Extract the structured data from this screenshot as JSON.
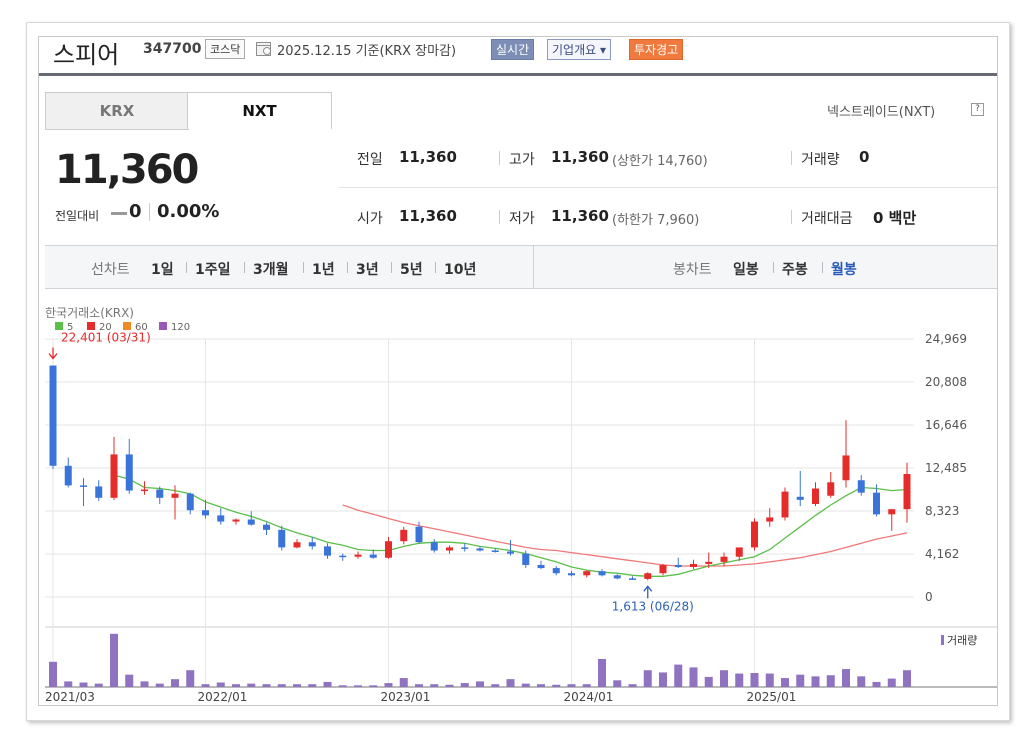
{
  "header": {
    "stock_name": "스피어",
    "stock_code": "347700",
    "market": "코스닥",
    "date_text": "2025.12.15 기준(KRX 장마감)",
    "realtime_label": "실시간",
    "company_label": "기업개요 ▾",
    "warning_label": "투자경고"
  },
  "tabs": [
    {
      "label": "KRX"
    },
    {
      "label": "NXT"
    }
  ],
  "nxt_label": "넥스트레이드(NXT)",
  "help_glyph": "?",
  "price": {
    "current": "11,360",
    "change_label": "전일대비",
    "change_value": "0",
    "change_pct": "0.00%"
  },
  "stats": {
    "prev_label": "전일",
    "prev_value": "11,360",
    "high_label": "고가",
    "high_value": "11,360",
    "upper_limit": "(상한가 14,760)",
    "volume_label": "거래량",
    "volume_value": "0",
    "open_label": "시가",
    "open_value": "11,360",
    "low_label": "저가",
    "low_value": "11,360",
    "lower_limit": "(하한가 7,960)",
    "amount_label": "거래대금",
    "amount_value": "0 백만"
  },
  "period": {
    "line_label": "선차트",
    "line_items": [
      "1일",
      "1주일",
      "3개월",
      "1년",
      "3년",
      "5년",
      "10년"
    ],
    "candle_label": "봉차트",
    "candle_items": [
      "일봉",
      "주봉",
      "월봉"
    ],
    "selected": "월봉"
  },
  "colors": {
    "up": "#e62b2b",
    "down": "#3a74d8",
    "ma5": "#5cbf4a",
    "ma20": "#f07878",
    "volume": "#8f72c0",
    "grid": "#e6e6e6"
  },
  "chart_data": {
    "type": "candlestick",
    "source_label": "한국거래소(KRX)",
    "legend": [
      "5",
      "20",
      "60",
      "120"
    ],
    "legend_colors": [
      "#5cbf4a",
      "#e62b2b",
      "#f08a24",
      "#9b59b6"
    ],
    "y_ticks": [
      "24,969",
      "20,808",
      "16,646",
      "12,485",
      "8,323",
      "4,162",
      "0"
    ],
    "ylim": [
      0,
      24969
    ],
    "x_ticks": [
      {
        "label": "2021/03",
        "index": 0
      },
      {
        "label": "2022/01",
        "index": 10
      },
      {
        "label": "2023/01",
        "index": 22
      },
      {
        "label": "2024/01",
        "index": 34
      },
      {
        "label": "2025/01",
        "index": 46
      }
    ],
    "max_annotation": {
      "label": "22,401 (03/31)",
      "index": 0,
      "value": 22401
    },
    "min_annotation": {
      "label": "1,613 (06/28)",
      "index": 39,
      "value": 1613
    },
    "volume_label": "거래량",
    "candles": [
      {
        "o": 22401,
        "h": 22401,
        "l": 12400,
        "c": 12700
      },
      {
        "o": 12700,
        "h": 13500,
        "l": 10600,
        "c": 10800
      },
      {
        "o": 10800,
        "h": 11500,
        "l": 8800,
        "c": 10700
      },
      {
        "o": 10700,
        "h": 11300,
        "l": 9300,
        "c": 9600
      },
      {
        "o": 9600,
        "h": 15500,
        "l": 9400,
        "c": 13800
      },
      {
        "o": 13800,
        "h": 15300,
        "l": 10000,
        "c": 10300
      },
      {
        "o": 10300,
        "h": 11200,
        "l": 9900,
        "c": 10400
      },
      {
        "o": 10400,
        "h": 10700,
        "l": 9000,
        "c": 9600
      },
      {
        "o": 9600,
        "h": 10800,
        "l": 7500,
        "c": 10000
      },
      {
        "o": 10000,
        "h": 10100,
        "l": 8000,
        "c": 8400
      },
      {
        "o": 8400,
        "h": 9400,
        "l": 7600,
        "c": 7900
      },
      {
        "o": 7900,
        "h": 8600,
        "l": 7000,
        "c": 7300
      },
      {
        "o": 7300,
        "h": 7600,
        "l": 7000,
        "c": 7500
      },
      {
        "o": 7500,
        "h": 8300,
        "l": 6900,
        "c": 7000
      },
      {
        "o": 7000,
        "h": 7200,
        "l": 6000,
        "c": 6500
      },
      {
        "o": 6500,
        "h": 6900,
        "l": 4500,
        "c": 4800
      },
      {
        "o": 4800,
        "h": 5600,
        "l": 4700,
        "c": 5300
      },
      {
        "o": 5300,
        "h": 5800,
        "l": 4600,
        "c": 4900
      },
      {
        "o": 4900,
        "h": 5200,
        "l": 3700,
        "c": 4000
      },
      {
        "o": 4000,
        "h": 4200,
        "l": 3500,
        "c": 3900
      },
      {
        "o": 3900,
        "h": 4400,
        "l": 3700,
        "c": 4100
      },
      {
        "o": 4100,
        "h": 4600,
        "l": 3700,
        "c": 3800
      },
      {
        "o": 3800,
        "h": 5800,
        "l": 3700,
        "c": 5400
      },
      {
        "o": 5400,
        "h": 6800,
        "l": 5100,
        "c": 6500
      },
      {
        "o": 6800,
        "h": 7300,
        "l": 5200,
        "c": 5300
      },
      {
        "o": 5300,
        "h": 5600,
        "l": 4300,
        "c": 4500
      },
      {
        "o": 4500,
        "h": 5000,
        "l": 4200,
        "c": 4800
      },
      {
        "o": 4800,
        "h": 5200,
        "l": 4400,
        "c": 4700
      },
      {
        "o": 4700,
        "h": 4900,
        "l": 4400,
        "c": 4500
      },
      {
        "o": 4500,
        "h": 4700,
        "l": 4300,
        "c": 4400
      },
      {
        "o": 4400,
        "h": 5500,
        "l": 4000,
        "c": 4200
      },
      {
        "o": 4200,
        "h": 4500,
        "l": 2800,
        "c": 3100
      },
      {
        "o": 3100,
        "h": 3500,
        "l": 2700,
        "c": 2800
      },
      {
        "o": 2800,
        "h": 3000,
        "l": 2100,
        "c": 2300
      },
      {
        "o": 2300,
        "h": 2500,
        "l": 2000,
        "c": 2100
      },
      {
        "o": 2100,
        "h": 2600,
        "l": 1900,
        "c": 2500
      },
      {
        "o": 2500,
        "h": 2700,
        "l": 2000,
        "c": 2100
      },
      {
        "o": 2100,
        "h": 2200,
        "l": 1700,
        "c": 1800
      },
      {
        "o": 1800,
        "h": 2000,
        "l": 1650,
        "c": 1750
      },
      {
        "o": 1750,
        "h": 2400,
        "l": 1613,
        "c": 2300
      },
      {
        "o": 2300,
        "h": 3200,
        "l": 2100,
        "c": 3100
      },
      {
        "o": 3100,
        "h": 3800,
        "l": 2800,
        "c": 2900
      },
      {
        "o": 2900,
        "h": 3600,
        "l": 2700,
        "c": 3200
      },
      {
        "o": 3200,
        "h": 4300,
        "l": 2800,
        "c": 3400
      },
      {
        "o": 3400,
        "h": 4300,
        "l": 3000,
        "c": 3900
      },
      {
        "o": 3900,
        "h": 4700,
        "l": 3500,
        "c": 4800
      },
      {
        "o": 4800,
        "h": 7600,
        "l": 4500,
        "c": 7300
      },
      {
        "o": 7300,
        "h": 8600,
        "l": 6800,
        "c": 7700
      },
      {
        "o": 7700,
        "h": 10600,
        "l": 7400,
        "c": 10200
      },
      {
        "o": 9700,
        "h": 12200,
        "l": 8800,
        "c": 9400
      },
      {
        "o": 9000,
        "h": 11100,
        "l": 8800,
        "c": 10500
      },
      {
        "o": 9800,
        "h": 12100,
        "l": 9600,
        "c": 11100
      },
      {
        "o": 11300,
        "h": 17100,
        "l": 10600,
        "c": 13700
      },
      {
        "o": 11300,
        "h": 11800,
        "l": 9800,
        "c": 10100
      },
      {
        "o": 10100,
        "h": 10900,
        "l": 7800,
        "c": 8000
      },
      {
        "o": 8000,
        "h": 8500,
        "l": 6400,
        "c": 8500
      },
      {
        "o": 8500,
        "h": 13000,
        "l": 7200,
        "c": 11900
      }
    ],
    "ma5": [
      null,
      null,
      null,
      null,
      11800,
      11400,
      10600,
      10500,
      10300,
      10000,
      9200,
      8700,
      8200,
      7800,
      7300,
      6700,
      6200,
      5800,
      5300,
      5000,
      4600,
      4500,
      4500,
      4900,
      5200,
      5300,
      5300,
      5200,
      4900,
      4700,
      4500,
      4200,
      3800,
      3400,
      2900,
      2600,
      2400,
      2300,
      2100,
      2000,
      2000,
      2200,
      2600,
      3000,
      3300,
      3600,
      3900,
      4600,
      5700,
      6800,
      7900,
      8900,
      9800,
      10600,
      10500,
      10300,
      10400
    ],
    "ma20": [
      null,
      null,
      null,
      null,
      null,
      null,
      null,
      null,
      null,
      null,
      null,
      null,
      null,
      null,
      null,
      null,
      null,
      null,
      null,
      8900,
      8400,
      8000,
      7600,
      7200,
      6900,
      6600,
      6300,
      6000,
      5700,
      5400,
      5100,
      4800,
      4600,
      4500,
      4300,
      4100,
      3900,
      3700,
      3500,
      3300,
      3100,
      3000,
      3000,
      3000,
      3000,
      3100,
      3200,
      3400,
      3600,
      3800,
      4100,
      4400,
      4800,
      5200,
      5600,
      5900,
      6200
    ]
  },
  "volumes": [
    0.45,
    0.1,
    0.08,
    0.06,
    0.95,
    0.22,
    0.1,
    0.06,
    0.14,
    0.3,
    0.05,
    0.08,
    0.05,
    0.06,
    0.05,
    0.05,
    0.05,
    0.05,
    0.09,
    0.03,
    0.03,
    0.03,
    0.07,
    0.16,
    0.05,
    0.05,
    0.04,
    0.07,
    0.1,
    0.05,
    0.14,
    0.06,
    0.05,
    0.04,
    0.05,
    0.05,
    0.5,
    0.12,
    0.05,
    0.3,
    0.26,
    0.4,
    0.35,
    0.18,
    0.3,
    0.24,
    0.25,
    0.24,
    0.16,
    0.22,
    0.19,
    0.21,
    0.32,
    0.19,
    0.09,
    0.15,
    0.3
  ]
}
